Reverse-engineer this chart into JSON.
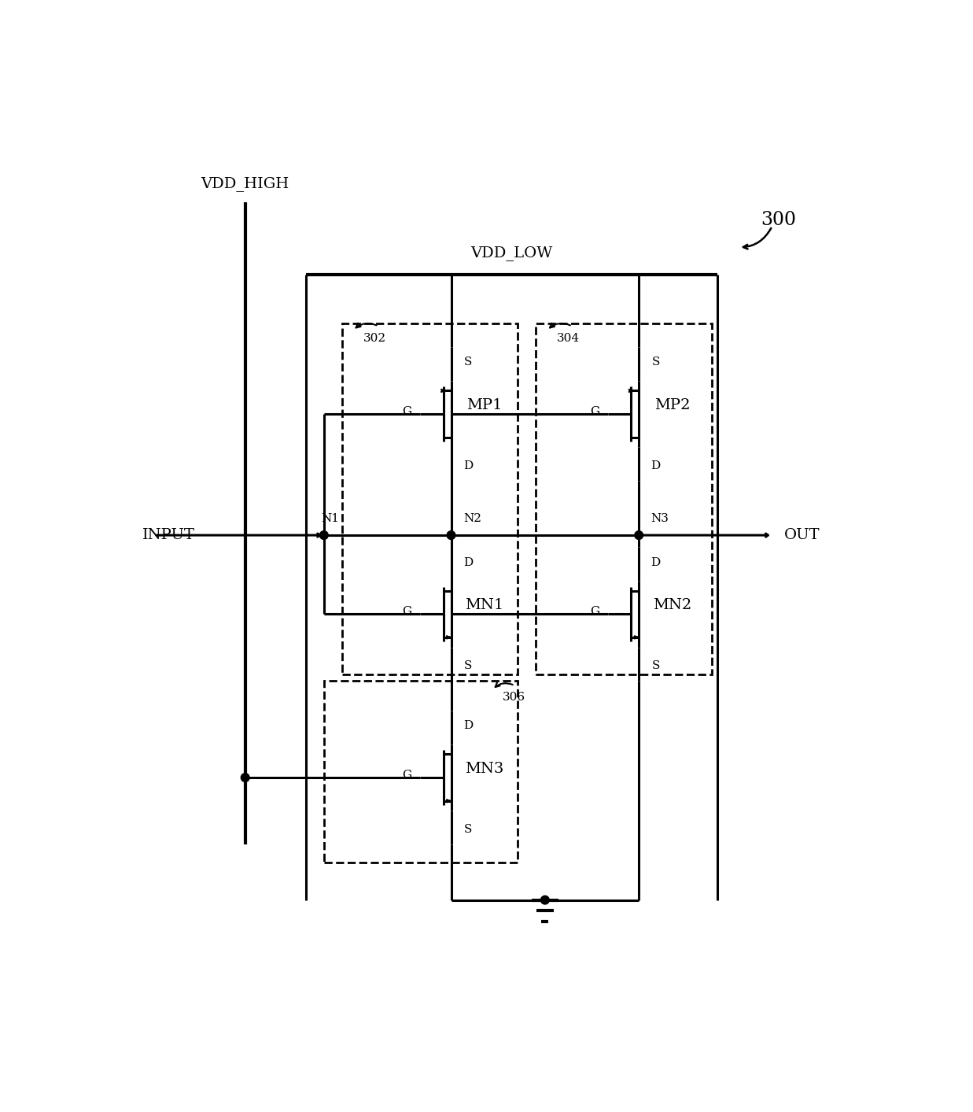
{
  "bg_color": "#ffffff",
  "line_color": "#000000",
  "lw": 2.2,
  "lw_thick": 3.0,
  "fontsize": 13,
  "fontsize_small": 11,
  "fontsize_label": 14,
  "labels": {
    "vdd_high": "VDD_HIGH",
    "vdd_low": "VDD_LOW",
    "input": "INPUT",
    "out": "OUT",
    "n1": "N1",
    "n2": "N2",
    "n3": "N3",
    "mp1": "MP1",
    "mp2": "MP2",
    "mn1": "MN1",
    "mn2": "MN2",
    "mn3": "MN3",
    "box302": "302",
    "box304": "304",
    "box306": "306",
    "figure_num": "300"
  }
}
